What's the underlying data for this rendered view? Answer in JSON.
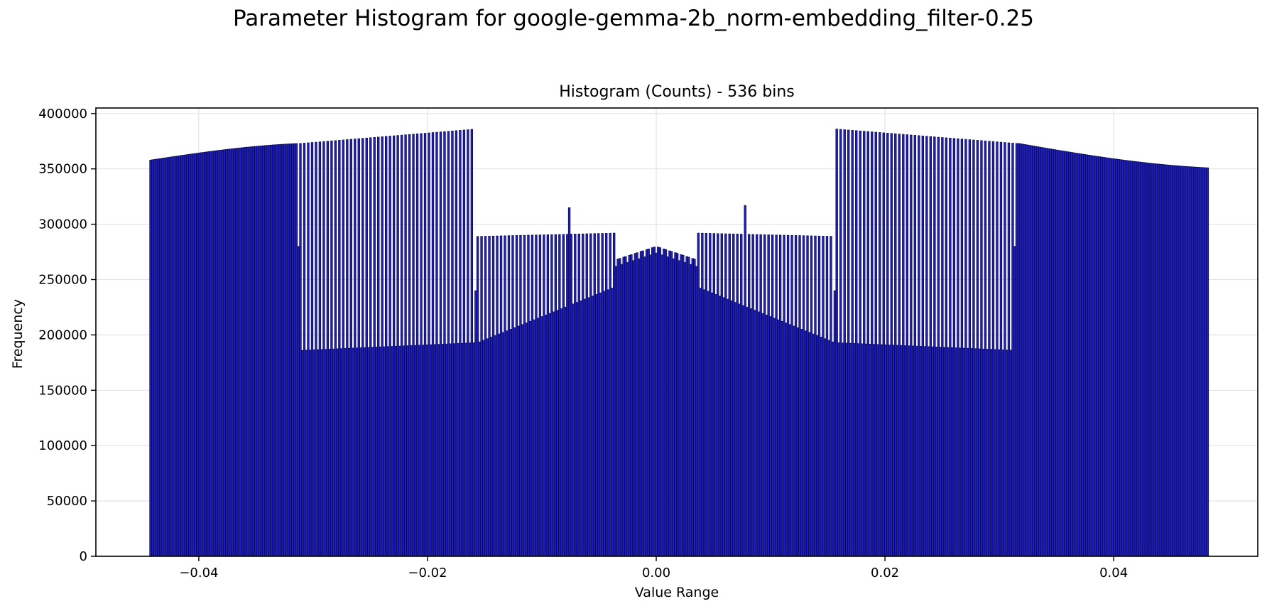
{
  "chart_data": {
    "type": "bar",
    "title": "Parameter Histogram for google-gemma-2b_norm-embedding_filter-0.25",
    "subtitle": "Histogram (Counts) - 536 bins",
    "xlabel": "Value Range",
    "ylabel": "Frequency",
    "xlim": [
      -0.049,
      0.0526
    ],
    "ylim": [
      0,
      405000
    ],
    "xticks": [
      -0.04,
      -0.02,
      0.0,
      0.02,
      0.04
    ],
    "xtick_labels": [
      "−0.04",
      "−0.02",
      "0.00",
      "0.02",
      "0.04"
    ],
    "yticks": [
      0,
      50000,
      100000,
      150000,
      200000,
      250000,
      300000,
      350000,
      400000
    ],
    "ytick_labels": [
      "0",
      "50000",
      "100000",
      "150000",
      "200000",
      "250000",
      "300000",
      "350000",
      "400000"
    ],
    "grid": true,
    "bar_color": "#2020b8",
    "edge_color": "#000033",
    "series": [
      {
        "segments": [
          {
            "x_start": -0.0443,
            "x_end": -0.0312,
            "bins": 77,
            "pattern": "high",
            "v_start": 358000,
            "v_end": 373000
          },
          {
            "x_start": -0.0312,
            "x_end": -0.0157,
            "bins": 91,
            "pattern": "alt_high_low",
            "high_start": 373000,
            "high_end": 386000,
            "low_start": 186000,
            "low_end": 193000
          },
          {
            "x_start": -0.0157,
            "x_end": -0.0036,
            "bins": 71,
            "pattern": "alt_mid_low",
            "high_start": 289000,
            "high_end": 292000,
            "low_start": 193000,
            "low_end": 243000
          },
          {
            "x_start": -0.0036,
            "x_end": 0.0036,
            "bins": 43,
            "pattern": "center",
            "v_edge": 268000,
            "v_mid": 280000
          },
          {
            "x_start": 0.0036,
            "x_end": 0.0157,
            "bins": 71,
            "pattern": "alt_mid_low",
            "high_start": 292000,
            "high_end": 289000,
            "low_start": 243000,
            "low_end": 193000
          },
          {
            "x_start": 0.0157,
            "x_end": 0.0316,
            "bins": 93,
            "pattern": "alt_high_low",
            "high_start": 386000,
            "high_end": 373000,
            "low_start": 193000,
            "low_end": 186000
          },
          {
            "x_start": 0.0316,
            "x_end": 0.0483,
            "bins": 90,
            "pattern": "high",
            "v_start": 373000,
            "v_end": 351000
          }
        ],
        "spikes": [
          {
            "x": -0.0076,
            "value": 315000
          },
          {
            "x": 0.0078,
            "value": 317000
          },
          {
            "x": -0.0313,
            "value": 280000
          },
          {
            "x": 0.0314,
            "value": 280000
          },
          {
            "x": -0.0158,
            "value": 240000
          },
          {
            "x": 0.0157,
            "value": 240000
          }
        ]
      }
    ]
  }
}
